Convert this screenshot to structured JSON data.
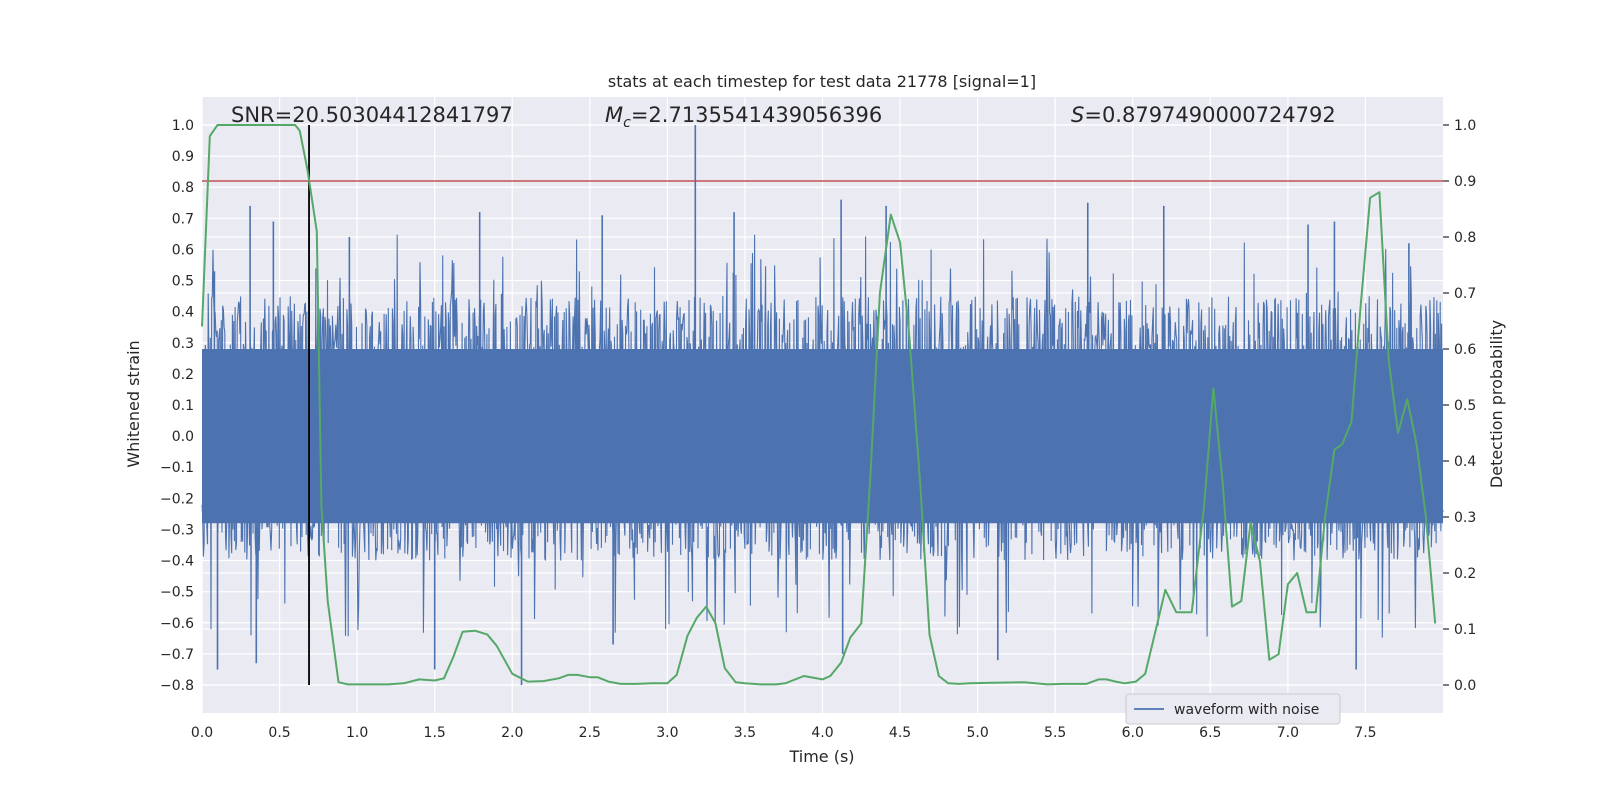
{
  "chart_data": {
    "type": "line",
    "title": "stats at each timestep for test data 21778 [signal=1]",
    "xlabel": "Time (s)",
    "ylabel_left": "Whitened strain",
    "ylabel_right": "Detection probability",
    "xlim": [
      0.0,
      8.0
    ],
    "ylim_left": [
      -0.89,
      1.09
    ],
    "ylim_right": [
      -0.05,
      1.05
    ],
    "x_ticks": [
      0.0,
      0.5,
      1.0,
      1.5,
      2.0,
      2.5,
      3.0,
      3.5,
      4.0,
      4.5,
      5.0,
      5.5,
      6.0,
      6.5,
      7.0,
      7.5
    ],
    "x_tick_labels": [
      "0.0",
      "0.5",
      "1.0",
      "1.5",
      "2.0",
      "2.5",
      "3.0",
      "3.5",
      "4.0",
      "4.5",
      "5.0",
      "5.5",
      "6.0",
      "6.5",
      "7.0",
      "7.5"
    ],
    "y_left_ticks": [
      1.0,
      0.9,
      0.8,
      0.7,
      0.6,
      0.5,
      0.4,
      0.3,
      0.2,
      0.1,
      0.0,
      -0.1,
      -0.2,
      -0.3,
      -0.4,
      -0.5,
      -0.6,
      -0.7,
      -0.8
    ],
    "y_left_tick_labels": [
      "1.0",
      "0.9",
      "0.8",
      "0.7",
      "0.6",
      "0.5",
      "0.4",
      "0.3",
      "0.2",
      "0.1",
      "0.0",
      "−0.1",
      "−0.2",
      "−0.3",
      "−0.4",
      "−0.5",
      "−0.6",
      "−0.7",
      "−0.8"
    ],
    "y_right_ticks": [
      1.0,
      0.9,
      0.8,
      0.7,
      0.6,
      0.5,
      0.4,
      0.3,
      0.2,
      0.1,
      0.0
    ],
    "y_right_tick_labels": [
      "1.0",
      "0.9",
      "0.8",
      "0.7",
      "0.6",
      "0.5",
      "0.4",
      "0.3",
      "0.2",
      "0.1",
      "0.0"
    ],
    "grid": true,
    "legend": {
      "placement": "lower-right",
      "entries": [
        {
          "label": "waveform with noise",
          "color": "#4c72b0"
        }
      ]
    },
    "annotations": {
      "snr_label": "SNR=20.50304412841797",
      "mc_prefix": "M",
      "mc_sub": "c",
      "mc_value": "=2.7135541439056396",
      "s_prefix": "S",
      "s_value": "=0.8797490000724792"
    },
    "colors": {
      "background": "#eaeaf2",
      "grid": "#ffffff",
      "waveform": "#4c72b0",
      "probability": "#55a868",
      "threshold": "#c44e52",
      "marker": "#000000"
    },
    "waveform": {
      "name": "waveform with noise",
      "axis": "left",
      "sample_count": 4096,
      "typical_amplitude": [
        -0.4,
        0.45
      ],
      "peaks": [
        {
          "x": 0.08,
          "y": 0.53
        },
        {
          "x": 0.1,
          "y": -0.75
        },
        {
          "x": 0.31,
          "y": 0.74
        },
        {
          "x": 0.35,
          "y": -0.73
        },
        {
          "x": 0.46,
          "y": 0.69
        },
        {
          "x": 0.69,
          "y": 0.69
        },
        {
          "x": 0.95,
          "y": 0.64
        },
        {
          "x": 1.5,
          "y": -0.75
        },
        {
          "x": 1.79,
          "y": 0.72
        },
        {
          "x": 2.06,
          "y": -0.8
        },
        {
          "x": 2.58,
          "y": 0.71
        },
        {
          "x": 2.65,
          "y": -0.67
        },
        {
          "x": 3.18,
          "y": 1.0
        },
        {
          "x": 3.43,
          "y": 0.72
        },
        {
          "x": 4.12,
          "y": 0.76
        },
        {
          "x": 4.13,
          "y": -0.7
        },
        {
          "x": 4.41,
          "y": 0.74
        },
        {
          "x": 5.13,
          "y": -0.72
        },
        {
          "x": 5.71,
          "y": 0.75
        },
        {
          "x": 6.2,
          "y": 0.74
        },
        {
          "x": 7.13,
          "y": 0.68
        },
        {
          "x": 7.3,
          "y": 0.69
        },
        {
          "x": 7.44,
          "y": -0.75
        },
        {
          "x": 7.78,
          "y": 0.62
        }
      ]
    },
    "probability": {
      "axis": "right",
      "x": [
        0.0,
        0.05,
        0.1,
        0.2,
        0.3,
        0.4,
        0.5,
        0.6,
        0.63,
        0.68,
        0.74,
        0.77,
        0.81,
        0.88,
        0.94,
        1.0,
        1.1,
        1.2,
        1.3,
        1.4,
        1.5,
        1.56,
        1.62,
        1.68,
        1.76,
        1.84,
        1.9,
        1.95,
        2.0,
        2.1,
        2.2,
        2.3,
        2.36,
        2.42,
        2.5,
        2.55,
        2.62,
        2.7,
        2.8,
        2.9,
        3.0,
        3.06,
        3.13,
        3.19,
        3.25,
        3.31,
        3.37,
        3.44,
        3.5,
        3.6,
        3.7,
        3.76,
        3.88,
        4.0,
        4.05,
        4.12,
        4.18,
        4.25,
        4.31,
        4.37,
        4.44,
        4.5,
        4.56,
        4.63,
        4.69,
        4.75,
        4.81,
        4.88,
        4.95,
        5.1,
        5.3,
        5.45,
        5.55,
        5.7,
        5.78,
        5.83,
        5.89,
        5.95,
        6.02,
        6.08,
        6.15,
        6.21,
        6.28,
        6.33,
        6.38,
        6.46,
        6.52,
        6.58,
        6.64,
        6.7,
        6.76,
        6.82,
        6.88,
        6.94,
        7.0,
        7.06,
        7.12,
        7.18,
        7.24,
        7.3,
        7.35,
        7.41,
        7.47,
        7.53,
        7.59,
        7.65,
        7.71,
        7.77,
        7.83,
        7.89,
        7.95
      ],
      "y": [
        0.64,
        0.98,
        1.0,
        1.0,
        1.0,
        1.0,
        1.0,
        1.0,
        0.99,
        0.92,
        0.81,
        0.32,
        0.15,
        0.005,
        0.001,
        0.001,
        0.001,
        0.001,
        0.003,
        0.01,
        0.008,
        0.012,
        0.05,
        0.095,
        0.097,
        0.09,
        0.07,
        0.045,
        0.02,
        0.006,
        0.007,
        0.012,
        0.018,
        0.018,
        0.014,
        0.014,
        0.006,
        0.002,
        0.002,
        0.003,
        0.003,
        0.018,
        0.088,
        0.12,
        0.14,
        0.11,
        0.03,
        0.005,
        0.003,
        0.001,
        0.001,
        0.003,
        0.016,
        0.01,
        0.016,
        0.04,
        0.085,
        0.11,
        0.38,
        0.7,
        0.84,
        0.79,
        0.62,
        0.36,
        0.09,
        0.016,
        0.003,
        0.002,
        0.003,
        0.004,
        0.005,
        0.001,
        0.002,
        0.002,
        0.01,
        0.01,
        0.006,
        0.003,
        0.006,
        0.02,
        0.1,
        0.17,
        0.13,
        0.13,
        0.13,
        0.32,
        0.53,
        0.36,
        0.14,
        0.15,
        0.29,
        0.22,
        0.045,
        0.055,
        0.18,
        0.2,
        0.13,
        0.13,
        0.3,
        0.42,
        0.43,
        0.47,
        0.68,
        0.87,
        0.88,
        0.58,
        0.45,
        0.51,
        0.43,
        0.3,
        0.11
      ]
    },
    "threshold": {
      "axis": "right",
      "value": 0.9
    },
    "event_marker": {
      "x": 0.69
    }
  }
}
